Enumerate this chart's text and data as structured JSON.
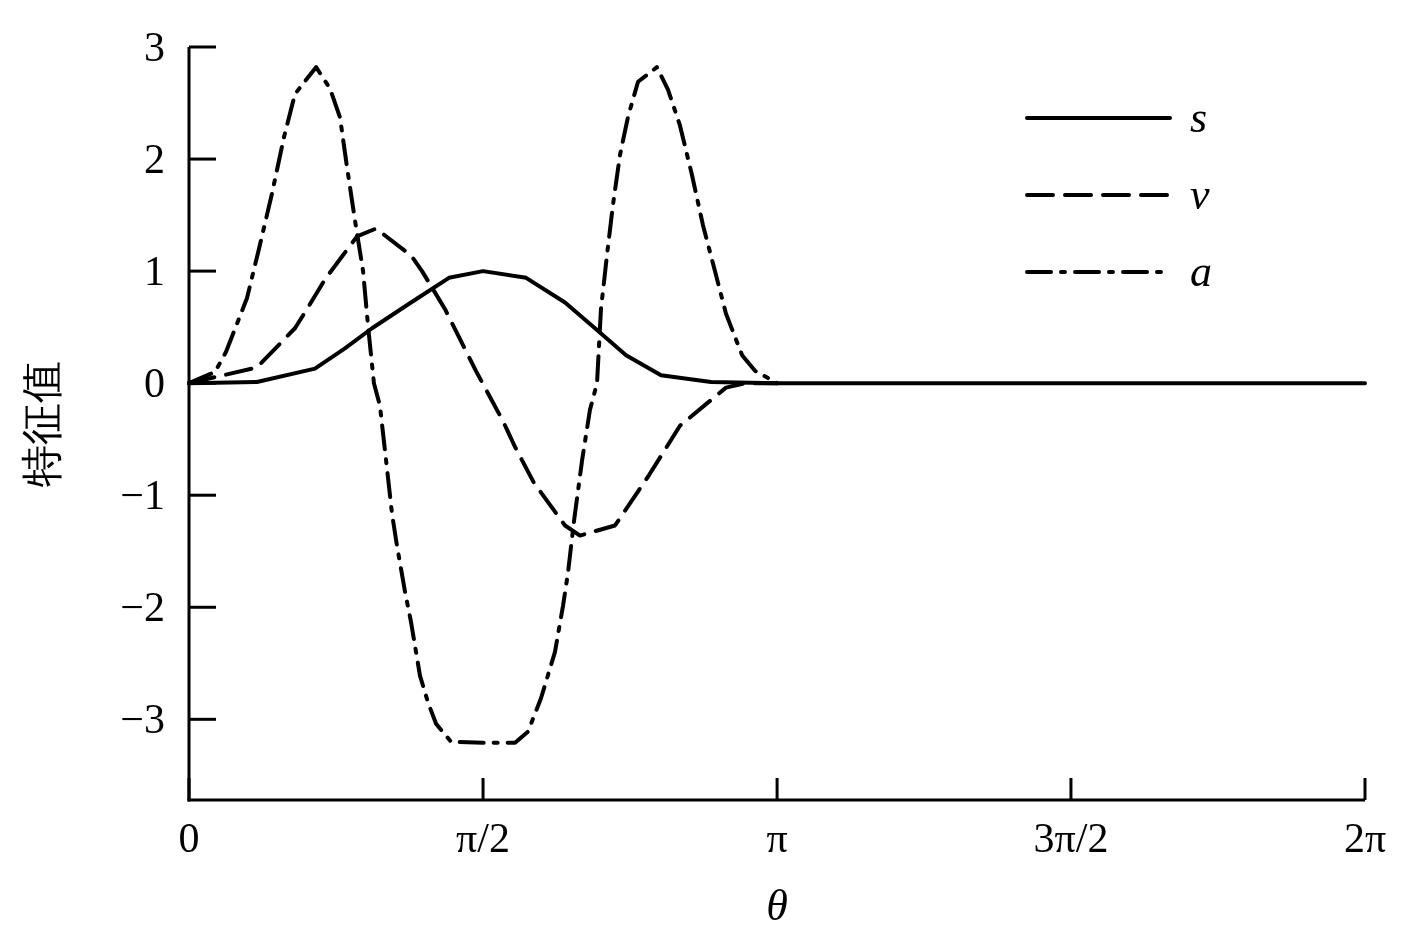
{
  "chart_data": {
    "type": "line",
    "xlabel": "θ",
    "ylabel": "特征值",
    "xlim": [
      0,
      6.283
    ],
    "ylim": [
      -3.72,
      3
    ],
    "xticks": [
      {
        "value": 0,
        "label": "0"
      },
      {
        "value": 1.571,
        "label": "π/2"
      },
      {
        "value": 3.142,
        "label": "π"
      },
      {
        "value": 4.712,
        "label": "3π/2"
      },
      {
        "value": 6.283,
        "label": "2π"
      }
    ],
    "yticks": [
      -3,
      -2,
      -1,
      0,
      1,
      2,
      3
    ],
    "legend": "top right",
    "series": [
      {
        "name": "s",
        "color": "#000000",
        "line_style": "solid",
        "x": [
          0,
          0.363,
          0.673,
          0.833,
          0.978,
          1.186,
          1.389,
          1.571,
          1.801,
          2.009,
          2.169,
          2.335,
          2.522,
          2.789,
          3.142,
          6.283
        ],
        "values": [
          0,
          0.01,
          0.13,
          0.31,
          0.49,
          0.72,
          0.94,
          1.0,
          0.94,
          0.72,
          0.49,
          0.25,
          0.07,
          0.01,
          0,
          0
        ]
      },
      {
        "name": "v",
        "color": "#000000",
        "line_style": "dashed",
        "x": [
          0,
          0.363,
          0.566,
          0.63,
          0.732,
          0.898,
          0.999,
          1.186,
          1.245,
          1.368,
          1.533,
          1.678,
          1.742,
          1.843,
          2.009,
          2.089,
          2.276,
          2.458,
          2.623,
          2.869,
          2.971,
          3.142
        ],
        "values": [
          0,
          0.14,
          0.49,
          0.66,
          0.94,
          1.31,
          1.38,
          1.14,
          1.0,
          0.66,
          0.11,
          -0.34,
          -0.57,
          -0.89,
          -1.27,
          -1.36,
          -1.27,
          -0.82,
          -0.38,
          -0.04,
          0,
          0
        ]
      },
      {
        "name": "a",
        "color": "#000000",
        "line_style": "dashdot",
        "x": [
          0,
          0.139,
          0.198,
          0.31,
          0.374,
          0.443,
          0.508,
          0.566,
          0.679,
          0.753,
          0.807,
          0.844,
          0.887,
          0.93,
          0.956,
          0.988,
          1.02,
          1.053,
          1.085,
          1.111,
          1.154,
          1.186,
          1.234,
          1.277,
          1.32,
          1.4,
          1.571,
          1.742,
          1.811,
          1.881,
          1.955,
          1.998,
          2.025,
          2.057,
          2.1,
          2.142,
          2.18,
          2.201,
          2.233,
          2.265,
          2.303,
          2.346,
          2.399,
          2.5,
          2.559,
          2.623,
          2.687,
          2.746,
          2.81,
          2.869,
          2.955,
          3.024,
          3.142
        ],
        "values": [
          0,
          0.1,
          0.28,
          0.76,
          1.2,
          1.69,
          2.2,
          2.58,
          2.82,
          2.63,
          2.37,
          1.93,
          1.45,
          1.0,
          0.52,
          0,
          -0.2,
          -0.69,
          -1.17,
          -1.45,
          -1.86,
          -2.13,
          -2.61,
          -2.85,
          -3.04,
          -3.2,
          -3.21,
          -3.21,
          -3.11,
          -2.81,
          -2.4,
          -1.99,
          -1.69,
          -1.23,
          -0.69,
          -0.24,
          0,
          0.66,
          1.14,
          1.59,
          2.04,
          2.38,
          2.69,
          2.82,
          2.62,
          2.3,
          1.86,
          1.41,
          1.0,
          0.62,
          0.25,
          0.11,
          0
        ]
      }
    ]
  }
}
